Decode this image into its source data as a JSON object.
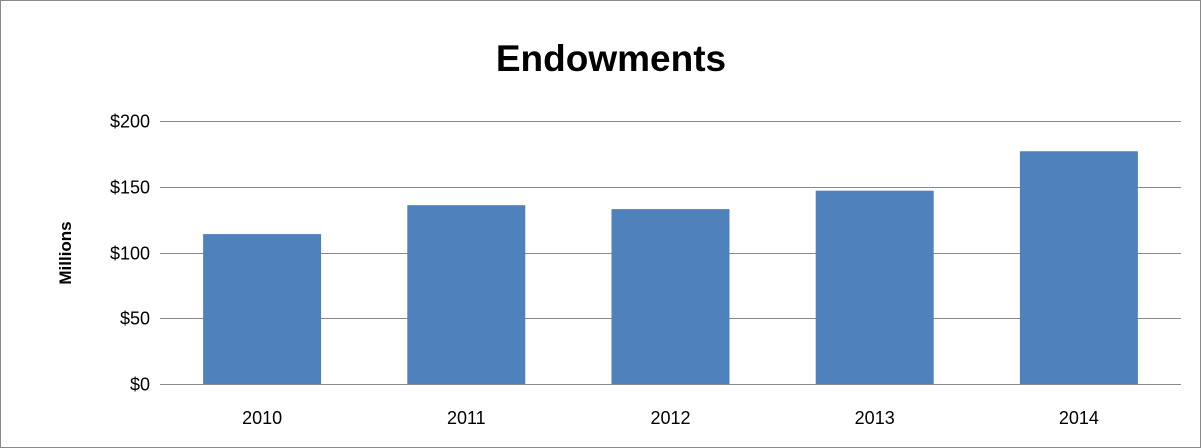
{
  "chart_data": {
    "type": "bar",
    "title": "Endowments",
    "xlabel": "",
    "ylabel": "Millions",
    "categories": [
      "2010",
      "2011",
      "2012",
      "2013",
      "2014"
    ],
    "values": [
      114,
      136,
      133,
      147,
      177
    ],
    "ylim": [
      0,
      200
    ],
    "yticks": [
      0,
      50,
      100,
      150,
      200
    ],
    "ytick_labels": [
      "$0",
      "$50",
      "$100",
      "$150",
      "$200"
    ],
    "grid": true,
    "legend": "none",
    "bar_color": "#4f81bd",
    "gridline_color": "#898989"
  }
}
